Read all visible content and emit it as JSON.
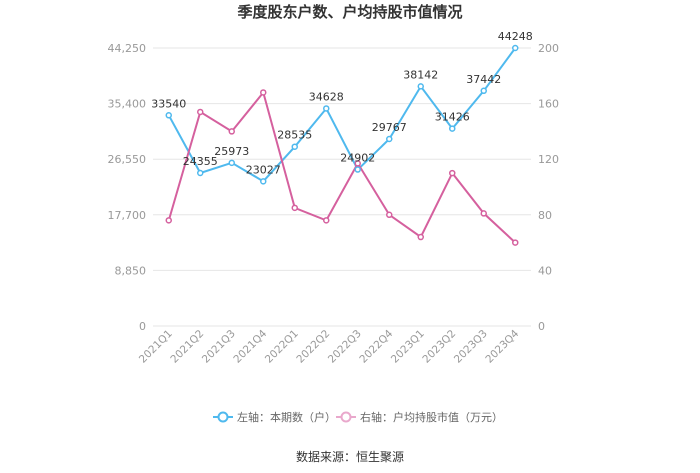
{
  "chart_data": {
    "type": "line",
    "title": "季度股东户数、户均持股市值情况",
    "source": "数据来源：恒生聚源",
    "categories": [
      "2021Q1",
      "2021Q2",
      "2021Q3",
      "2021Q4",
      "2022Q1",
      "2022Q2",
      "2022Q3",
      "2022Q4",
      "2023Q1",
      "2023Q2",
      "2023Q3",
      "2023Q4"
    ],
    "left_axis": {
      "ticks": [
        "0",
        "8,850",
        "17,700",
        "26,550",
        "35,400",
        "44,250"
      ],
      "ylim": [
        0,
        44250
      ]
    },
    "right_axis": {
      "ticks": [
        "0",
        "40",
        "80",
        "120",
        "160",
        "200"
      ],
      "ylim": [
        0,
        200
      ]
    },
    "series": [
      {
        "name": "左轴：本期数（户）",
        "axis": "left",
        "color": "#4fb9ee",
        "values": [
          33540,
          24355,
          25973,
          23027,
          28535,
          34628,
          24902,
          29767,
          38142,
          31426,
          37442,
          44248
        ],
        "labels": [
          "33540",
          "24355",
          "25973",
          "23027",
          "28535",
          "34628",
          "24902",
          "29767",
          "38142",
          "31426",
          "37442",
          "44248"
        ]
      },
      {
        "name": "右轴：户均持股市值（万元）",
        "axis": "right",
        "color": "#d5609e",
        "values": [
          76,
          154,
          140,
          168,
          85,
          76,
          117,
          80,
          64,
          110,
          81,
          60
        ]
      }
    ],
    "grid": true,
    "legend_position": "bottom"
  }
}
